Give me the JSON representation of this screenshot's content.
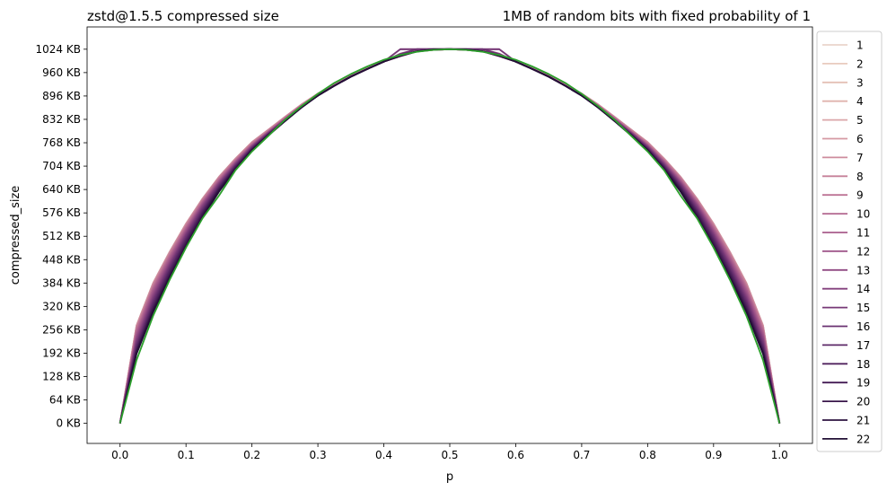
{
  "chart_data": {
    "type": "line",
    "title": "zstd@1.5.5 compressed size",
    "subtitle": "1MB of random bits with fixed probability of 1",
    "xlabel": "p",
    "ylabel": "compressed_size",
    "xlim": [
      -0.05,
      1.05
    ],
    "ylim": [
      -55,
      1085
    ],
    "x_ticks": [
      0.0,
      0.1,
      0.2,
      0.3,
      0.4,
      0.5,
      0.6,
      0.7,
      0.8,
      0.9,
      1.0
    ],
    "x_tick_labels": [
      "0.0",
      "0.1",
      "0.2",
      "0.3",
      "0.4",
      "0.5",
      "0.6",
      "0.7",
      "0.8",
      "0.9",
      "1.0"
    ],
    "y_ticks": [
      0,
      64,
      128,
      192,
      256,
      320,
      384,
      448,
      512,
      576,
      640,
      704,
      768,
      832,
      896,
      960,
      1024
    ],
    "y_tick_labels": [
      "0 KB",
      "64 KB",
      "128 KB",
      "192 KB",
      "256 KB",
      "320 KB",
      "384 KB",
      "448 KB",
      "512 KB",
      "576 KB",
      "640 KB",
      "704 KB",
      "768 KB",
      "832 KB",
      "896 KB",
      "960 KB",
      "1024 KB"
    ],
    "y_unit": "KB",
    "grid": false,
    "legend_position": "outside-right",
    "x": [
      0.0,
      0.025,
      0.05,
      0.075,
      0.1,
      0.125,
      0.15,
      0.175,
      0.2,
      0.225,
      0.25,
      0.275,
      0.3,
      0.325,
      0.35,
      0.375,
      0.4,
      0.425,
      0.45,
      0.475,
      0.5,
      0.525,
      0.55,
      0.575,
      0.6,
      0.625,
      0.65,
      0.675,
      0.7,
      0.725,
      0.75,
      0.775,
      0.8,
      0.825,
      0.85,
      0.875,
      0.9,
      0.925,
      0.95,
      0.975,
      1.0
    ],
    "series_rows": [
      {
        "name": "1",
        "color": "#e9d4cb",
        "values": [
          0,
          260,
          375,
          460,
          540,
          610,
          670,
          720,
          765,
          800,
          835,
          870,
          900,
          925,
          950,
          970,
          990,
          1005,
          1018,
          1022,
          1024,
          1022,
          1018,
          1005,
          990,
          970,
          950,
          925,
          900,
          870,
          835,
          800,
          765,
          720,
          670,
          610,
          540,
          460,
          375,
          260,
          0
        ]
      },
      {
        "name": "2",
        "color": "#e8cbbe",
        "values": [
          0,
          262,
          377,
          462,
          541,
          611,
          671,
          721,
          766,
          801,
          836,
          871,
          901,
          926,
          951,
          971,
          991,
          1006,
          1018,
          1022,
          1024,
          1022,
          1018,
          1006,
          991,
          971,
          951,
          926,
          901,
          871,
          836,
          801,
          766,
          721,
          671,
          611,
          541,
          462,
          377,
          262,
          0
        ]
      },
      {
        "name": "3",
        "color": "#e4c0b5",
        "values": [
          0,
          264,
          379,
          464,
          542,
          612,
          672,
          722,
          767,
          802,
          837,
          871,
          901,
          926,
          951,
          971,
          991,
          1006,
          1019,
          1022,
          1024,
          1022,
          1019,
          1006,
          991,
          971,
          951,
          926,
          901,
          871,
          837,
          802,
          767,
          722,
          672,
          612,
          542,
          464,
          379,
          264,
          0
        ]
      },
      {
        "name": "4",
        "color": "#e0b3ae",
        "values": [
          0,
          266,
          381,
          466,
          544,
          613,
          673,
          723,
          768,
          803,
          838,
          872,
          902,
          927,
          952,
          972,
          992,
          1006,
          1019,
          1023,
          1024,
          1023,
          1019,
          1006,
          992,
          972,
          952,
          927,
          902,
          872,
          838,
          803,
          768,
          723,
          673,
          613,
          544,
          466,
          381,
          266,
          0
        ]
      },
      {
        "name": "5",
        "color": "#dba6a8",
        "values": [
          0,
          268,
          383,
          468,
          546,
          614,
          674,
          724,
          769,
          804,
          838,
          872,
          902,
          927,
          952,
          972,
          992,
          1007,
          1019,
          1023,
          1024,
          1023,
          1019,
          1007,
          992,
          972,
          952,
          927,
          902,
          872,
          838,
          804,
          769,
          724,
          674,
          614,
          546,
          468,
          383,
          268,
          0
        ]
      },
      {
        "name": "6",
        "color": "#d599a3",
        "values": [
          0,
          268,
          384,
          469,
          547,
          615,
          675,
          725,
          770,
          804,
          839,
          873,
          903,
          927,
          952,
          972,
          992,
          1007,
          1019,
          1023,
          1024,
          1023,
          1019,
          1007,
          992,
          972,
          952,
          927,
          903,
          873,
          839,
          804,
          770,
          725,
          675,
          615,
          547,
          469,
          384,
          268,
          0
        ]
      },
      {
        "name": "7",
        "color": "#ce8c9e",
        "values": [
          0,
          266,
          382,
          467,
          545,
          614,
          674,
          724,
          769,
          804,
          838,
          872,
          902,
          927,
          952,
          972,
          992,
          1007,
          1019,
          1023,
          1024,
          1023,
          1019,
          1007,
          992,
          972,
          952,
          927,
          902,
          872,
          838,
          804,
          769,
          724,
          674,
          614,
          545,
          467,
          382,
          266,
          0
        ]
      },
      {
        "name": "8",
        "color": "#c68099",
        "values": [
          0,
          262,
          378,
          464,
          542,
          612,
          672,
          722,
          767,
          802,
          837,
          871,
          901,
          926,
          951,
          971,
          991,
          1006,
          1019,
          1022,
          1024,
          1022,
          1019,
          1006,
          991,
          971,
          951,
          926,
          901,
          871,
          837,
          802,
          767,
          722,
          672,
          612,
          542,
          464,
          378,
          262,
          0
        ]
      },
      {
        "name": "9",
        "color": "#bd7495",
        "values": [
          0,
          258,
          374,
          460,
          539,
          609,
          670,
          720,
          765,
          800,
          836,
          870,
          900,
          926,
          951,
          971,
          991,
          1006,
          1018,
          1022,
          1024,
          1022,
          1018,
          1006,
          991,
          971,
          951,
          926,
          900,
          870,
          836,
          800,
          765,
          720,
          670,
          609,
          539,
          460,
          374,
          258,
          0
        ]
      },
      {
        "name": "10",
        "color": "#b36891",
        "values": [
          0,
          252,
          369,
          456,
          535,
          606,
          667,
          718,
          763,
          799,
          834,
          869,
          899,
          925,
          950,
          970,
          990,
          1005,
          1018,
          1022,
          1024,
          1022,
          1018,
          1005,
          990,
          970,
          950,
          925,
          899,
          869,
          834,
          799,
          763,
          718,
          667,
          606,
          535,
          456,
          369,
          252,
          0
        ]
      },
      {
        "name": "11",
        "color": "#a85d8c",
        "values": [
          0,
          246,
          364,
          451,
          531,
          603,
          664,
          716,
          762,
          798,
          833,
          868,
          899,
          925,
          950,
          970,
          990,
          1005,
          1018,
          1022,
          1024,
          1022,
          1018,
          1005,
          990,
          970,
          950,
          925,
          899,
          868,
          833,
          798,
          762,
          716,
          664,
          603,
          531,
          451,
          364,
          246,
          0
        ]
      },
      {
        "name": "12",
        "color": "#9d5388",
        "values": [
          0,
          240,
          358,
          446,
          527,
          600,
          662,
          714,
          760,
          797,
          832,
          868,
          898,
          924,
          949,
          970,
          990,
          1005,
          1018,
          1022,
          1024,
          1022,
          1018,
          1005,
          990,
          970,
          949,
          924,
          898,
          868,
          832,
          797,
          760,
          714,
          662,
          600,
          527,
          446,
          358,
          240,
          0
        ]
      },
      {
        "name": "13",
        "color": "#914a83",
        "values": [
          0,
          234,
          352,
          441,
          523,
          597,
          659,
          712,
          759,
          796,
          832,
          867,
          898,
          924,
          949,
          970,
          990,
          1012,
          1024,
          1024,
          1024,
          1024,
          1024,
          1012,
          990,
          970,
          949,
          924,
          898,
          867,
          832,
          796,
          759,
          712,
          659,
          597,
          523,
          441,
          352,
          234,
          0
        ]
      },
      {
        "name": "14",
        "color": "#84417d",
        "values": [
          0,
          228,
          346,
          436,
          519,
          594,
          657,
          710,
          757,
          795,
          831,
          867,
          897,
          924,
          949,
          970,
          990,
          1024,
          1024,
          1024,
          1024,
          1024,
          1024,
          1024,
          990,
          970,
          949,
          924,
          897,
          867,
          831,
          795,
          757,
          710,
          657,
          594,
          519,
          436,
          346,
          228,
          0
        ]
      },
      {
        "name": "15",
        "color": "#773977",
        "values": [
          0,
          222,
          340,
          431,
          515,
          590,
          654,
          708,
          756,
          794,
          830,
          866,
          897,
          924,
          949,
          970,
          990,
          1024,
          1024,
          1024,
          1024,
          1024,
          1024,
          1024,
          990,
          970,
          949,
          924,
          897,
          866,
          830,
          794,
          756,
          708,
          654,
          590,
          515,
          431,
          340,
          222,
          0
        ]
      },
      {
        "name": "16",
        "color": "#6a3170",
        "values": [
          0,
          216,
          334,
          426,
          510,
          586,
          651,
          706,
          754,
          793,
          829,
          866,
          897,
          924,
          949,
          970,
          990,
          1010,
          1024,
          1024,
          1024,
          1024,
          1024,
          1010,
          990,
          970,
          949,
          924,
          897,
          866,
          829,
          793,
          754,
          706,
          651,
          586,
          510,
          426,
          334,
          216,
          0
        ]
      },
      {
        "name": "17",
        "color": "#5d2a68",
        "values": [
          0,
          210,
          328,
          420,
          505,
          582,
          648,
          704,
          753,
          792,
          829,
          865,
          897,
          924,
          949,
          970,
          990,
          1008,
          1018,
          1024,
          1024,
          1024,
          1018,
          1008,
          990,
          970,
          949,
          924,
          897,
          865,
          829,
          792,
          753,
          704,
          648,
          582,
          505,
          420,
          328,
          210,
          0
        ]
      },
      {
        "name": "18",
        "color": "#51235f",
        "values": [
          0,
          205,
          322,
          415,
          500,
          578,
          645,
          702,
          751,
          791,
          828,
          865,
          897,
          924,
          949,
          970,
          990,
          1007,
          1018,
          1023,
          1024,
          1023,
          1018,
          1007,
          990,
          970,
          949,
          924,
          897,
          865,
          828,
          791,
          751,
          702,
          645,
          578,
          500,
          415,
          322,
          205,
          0
        ]
      },
      {
        "name": "19",
        "color": "#451c55",
        "values": [
          0,
          200,
          316,
          409,
          495,
          574,
          642,
          700,
          750,
          790,
          828,
          865,
          897,
          924,
          949,
          970,
          990,
          1006,
          1018,
          1023,
          1024,
          1023,
          1018,
          1006,
          990,
          970,
          949,
          924,
          897,
          865,
          828,
          790,
          750,
          700,
          642,
          574,
          495,
          409,
          316,
          200,
          0
        ]
      },
      {
        "name": "20",
        "color": "#39164a",
        "values": [
          0,
          196,
          311,
          404,
          490,
          570,
          639,
          698,
          749,
          790,
          828,
          865,
          897,
          924,
          949,
          970,
          990,
          1006,
          1018,
          1023,
          1024,
          1023,
          1018,
          1006,
          990,
          970,
          949,
          924,
          897,
          865,
          828,
          790,
          749,
          698,
          639,
          570,
          490,
          404,
          311,
          196,
          0
        ]
      },
      {
        "name": "21",
        "color": "#2d1240",
        "values": [
          0,
          193,
          307,
          400,
          486,
          566,
          636,
          696,
          748,
          789,
          827,
          865,
          897,
          924,
          949,
          970,
          990,
          1006,
          1018,
          1023,
          1024,
          1023,
          1018,
          1006,
          990,
          970,
          949,
          924,
          897,
          865,
          827,
          789,
          748,
          696,
          636,
          566,
          486,
          400,
          307,
          193,
          0
        ]
      },
      {
        "name": "22",
        "color": "#221035",
        "values": [
          0,
          190,
          304,
          397,
          483,
          563,
          634,
          694,
          747,
          788,
          827,
          864,
          897,
          924,
          949,
          970,
          990,
          1006,
          1018,
          1023,
          1024,
          1023,
          1018,
          1006,
          990,
          970,
          949,
          924,
          897,
          864,
          827,
          788,
          747,
          694,
          634,
          563,
          483,
          397,
          304,
          190,
          0
        ]
      }
    ],
    "reference_curve": {
      "color": "#2ca02c",
      "values": [
        0,
        173,
        294,
        392,
        481,
        561,
        623,
        693,
        744,
        787,
        831,
        868,
        902,
        932,
        956,
        977,
        995,
        1008,
        1017,
        1022,
        1024,
        1022,
        1017,
        1008,
        995,
        977,
        956,
        932,
        902,
        868,
        831,
        787,
        744,
        693,
        623,
        561,
        481,
        392,
        294,
        173,
        0
      ]
    }
  }
}
